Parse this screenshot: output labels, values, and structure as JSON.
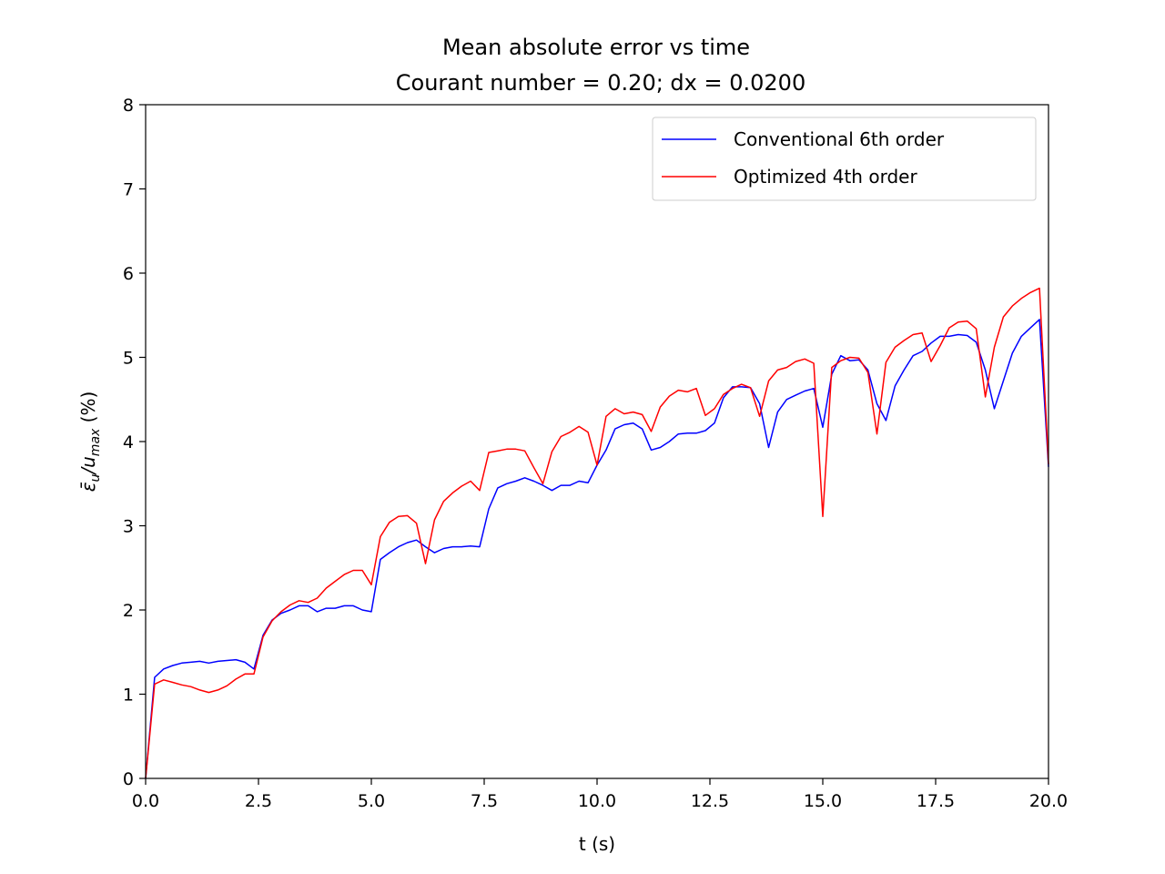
{
  "chart_data": {
    "type": "line",
    "title": "Mean absolute error vs time",
    "subtitle": "Courant number = 0.20; dx = 0.0200",
    "xlabel": "t (s)",
    "ylabel_parts": {
      "symbol": "ε̄",
      "sub1": "u",
      "slash": "/u",
      "sub2": "max",
      "unit": " (%)"
    },
    "xlim": [
      0,
      20
    ],
    "ylim": [
      0,
      8
    ],
    "xticks": [
      0,
      2.5,
      5,
      7.5,
      10,
      12.5,
      15,
      17.5,
      20
    ],
    "xtick_labels": [
      "0.0",
      "2.5",
      "5.0",
      "7.5",
      "10.0",
      "12.5",
      "15.0",
      "17.5",
      "20.0"
    ],
    "yticks": [
      0,
      1,
      2,
      3,
      4,
      5,
      6,
      7,
      8
    ],
    "ytick_labels": [
      "0",
      "1",
      "2",
      "3",
      "4",
      "5",
      "6",
      "7",
      "8"
    ],
    "grid": false,
    "legend_position": "top-right",
    "series": [
      {
        "name": "Conventional 6th order",
        "color": "#0000ff",
        "x": [
          0,
          0.2,
          0.4,
          0.6,
          0.8,
          1.0,
          1.2,
          1.4,
          1.6,
          1.8,
          2.0,
          2.2,
          2.4,
          2.6,
          2.8,
          3.0,
          3.2,
          3.4,
          3.6,
          3.8,
          4.0,
          4.2,
          4.4,
          4.6,
          4.8,
          5.0,
          5.2,
          5.4,
          5.6,
          5.8,
          6.0,
          6.2,
          6.4,
          6.6,
          6.8,
          7.0,
          7.2,
          7.4,
          7.6,
          7.8,
          8.0,
          8.2,
          8.4,
          8.6,
          8.8,
          9.0,
          9.2,
          9.4,
          9.6,
          9.8,
          10.0,
          10.2,
          10.4,
          10.6,
          10.8,
          11.0,
          11.2,
          11.4,
          11.6,
          11.8,
          12.0,
          12.2,
          12.4,
          12.6,
          12.8,
          13.0,
          13.2,
          13.4,
          13.6,
          13.8,
          14.0,
          14.2,
          14.4,
          14.6,
          14.8,
          15.0,
          15.2,
          15.4,
          15.6,
          15.8,
          16.0,
          16.2,
          16.4,
          16.6,
          16.8,
          17.0,
          17.2,
          17.4,
          17.6,
          17.8,
          18.0,
          18.2,
          18.4,
          18.6,
          18.8,
          19.0,
          19.2,
          19.4,
          19.6,
          19.8,
          20.0
        ],
        "y": [
          0.0,
          1.2,
          1.3,
          1.34,
          1.37,
          1.38,
          1.39,
          1.37,
          1.39,
          1.4,
          1.41,
          1.38,
          1.3,
          1.7,
          1.88,
          1.96,
          2.0,
          2.05,
          2.05,
          1.98,
          2.02,
          2.02,
          2.05,
          2.05,
          2.0,
          1.98,
          2.6,
          2.68,
          2.75,
          2.8,
          2.83,
          2.75,
          2.68,
          2.73,
          2.75,
          2.75,
          2.76,
          2.75,
          3.2,
          3.45,
          3.5,
          3.53,
          3.57,
          3.53,
          3.48,
          3.42,
          3.48,
          3.48,
          3.53,
          3.51,
          3.72,
          3.9,
          4.15,
          4.2,
          4.22,
          4.15,
          3.9,
          3.93,
          4.0,
          4.09,
          4.1,
          4.1,
          4.13,
          4.22,
          4.52,
          4.65,
          4.65,
          4.64,
          4.45,
          3.93,
          4.35,
          4.5,
          4.55,
          4.6,
          4.63,
          4.17,
          4.8,
          5.02,
          4.96,
          4.97,
          4.85,
          4.45,
          4.25,
          4.66,
          4.85,
          5.02,
          5.07,
          5.17,
          5.25,
          5.25,
          5.27,
          5.26,
          5.18,
          4.85,
          4.39,
          4.72,
          5.05,
          5.25,
          5.35,
          5.45,
          3.7
        ]
      },
      {
        "name": "Optimized 4th order",
        "color": "#ff0000",
        "x": [
          0,
          0.2,
          0.4,
          0.6,
          0.8,
          1.0,
          1.2,
          1.4,
          1.6,
          1.8,
          2.0,
          2.2,
          2.4,
          2.6,
          2.8,
          3.0,
          3.2,
          3.4,
          3.6,
          3.8,
          4.0,
          4.2,
          4.4,
          4.6,
          4.8,
          5.0,
          5.2,
          5.4,
          5.6,
          5.8,
          6.0,
          6.2,
          6.4,
          6.6,
          6.8,
          7.0,
          7.2,
          7.4,
          7.6,
          7.8,
          8.0,
          8.2,
          8.4,
          8.6,
          8.8,
          9.0,
          9.2,
          9.4,
          9.6,
          9.8,
          10.0,
          10.2,
          10.4,
          10.6,
          10.8,
          11.0,
          11.2,
          11.4,
          11.6,
          11.8,
          12.0,
          12.2,
          12.4,
          12.6,
          12.8,
          13.0,
          13.2,
          13.4,
          13.6,
          13.8,
          14.0,
          14.2,
          14.4,
          14.6,
          14.8,
          15.0,
          15.2,
          15.4,
          15.6,
          15.8,
          16.0,
          16.2,
          16.4,
          16.6,
          16.8,
          17.0,
          17.2,
          17.4,
          17.6,
          17.8,
          18.0,
          18.2,
          18.4,
          18.6,
          18.8,
          19.0,
          19.2,
          19.4,
          19.6,
          19.8,
          20.0
        ],
        "y": [
          0.0,
          1.12,
          1.17,
          1.14,
          1.11,
          1.09,
          1.05,
          1.02,
          1.05,
          1.1,
          1.18,
          1.24,
          1.24,
          1.68,
          1.87,
          1.98,
          2.06,
          2.11,
          2.09,
          2.14,
          2.26,
          2.34,
          2.42,
          2.47,
          2.47,
          2.3,
          2.87,
          3.04,
          3.11,
          3.12,
          3.03,
          2.55,
          3.07,
          3.29,
          3.39,
          3.47,
          3.53,
          3.42,
          3.87,
          3.89,
          3.91,
          3.91,
          3.89,
          3.69,
          3.5,
          3.88,
          4.06,
          4.11,
          4.18,
          4.11,
          3.72,
          4.3,
          4.39,
          4.33,
          4.35,
          4.32,
          4.12,
          4.41,
          4.54,
          4.61,
          4.59,
          4.63,
          4.31,
          4.39,
          4.56,
          4.63,
          4.68,
          4.64,
          4.3,
          4.72,
          4.85,
          4.88,
          4.95,
          4.98,
          4.93,
          3.11,
          4.88,
          4.96,
          5.0,
          4.99,
          4.82,
          4.09,
          4.94,
          5.12,
          5.2,
          5.27,
          5.29,
          4.95,
          5.14,
          5.35,
          5.42,
          5.43,
          5.34,
          4.53,
          5.12,
          5.48,
          5.61,
          5.7,
          5.77,
          5.82,
          3.73
        ]
      }
    ]
  }
}
